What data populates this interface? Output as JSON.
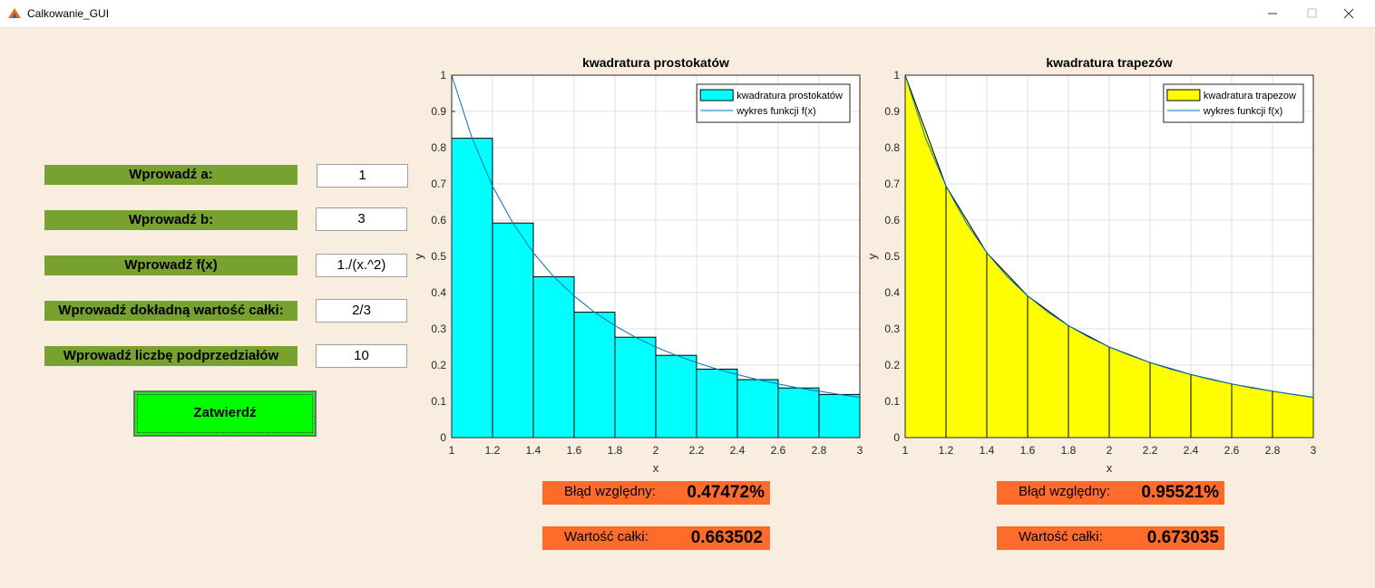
{
  "window": {
    "title": "Calkowanie_GUI"
  },
  "form": {
    "fields": [
      {
        "label": "Wprowadź a:",
        "value": "1"
      },
      {
        "label": "Wprowadź b:",
        "value": "3"
      },
      {
        "label": "Wprowadź f(x)",
        "value": "1./(x.^2)"
      },
      {
        "label": "Wprowadź dokładną wartość całki:",
        "value": "2/3"
      },
      {
        "label": "Wprowadź liczbę podprzedziałów",
        "value": "10"
      }
    ],
    "button": "Zatwierdź"
  },
  "results": [
    {
      "error_label": "Błąd względny:",
      "error_value": "0.47472%",
      "integral_label": "Wartość całki:",
      "integral_value": "0.663502"
    },
    {
      "error_label": "Błąd względny:",
      "error_value": "0.95521%",
      "integral_label": "Wartość całki:",
      "integral_value": "0.673035"
    }
  ],
  "chart_data": [
    {
      "type": "histogram",
      "title": "kwadratura prostokatów",
      "xlabel": "x",
      "ylabel": "y",
      "xlim": [
        1,
        3
      ],
      "ylim": [
        0,
        1
      ],
      "xticks": [
        1,
        1.2,
        1.4,
        1.6,
        1.8,
        2,
        2.2,
        2.4,
        2.6,
        2.8,
        3
      ],
      "yticks": [
        0,
        0.1,
        0.2,
        0.3,
        0.4,
        0.5,
        0.6,
        0.7,
        0.8,
        0.9,
        1
      ],
      "grid": true,
      "legend": "upper right",
      "series": [
        {
          "name": "kwadratura prostokatów",
          "color": "#00ffff",
          "type": "histogram",
          "bins": [
            1,
            1.2,
            1.4,
            1.6,
            1.8,
            2,
            2.2,
            2.4,
            2.6,
            2.8,
            3
          ],
          "values": [
            0.826,
            0.592,
            0.444,
            0.346,
            0.277,
            0.227,
            0.189,
            0.16,
            0.137,
            0.119
          ]
        },
        {
          "name": "wykres funkcji f(x)",
          "color": "#0072bd",
          "type": "line",
          "x": [
            1,
            1.1,
            1.2,
            1.3,
            1.4,
            1.5,
            1.6,
            1.7,
            1.8,
            1.9,
            2,
            2.1,
            2.2,
            2.3,
            2.4,
            2.5,
            2.6,
            2.7,
            2.8,
            2.9,
            3
          ],
          "values": [
            1,
            0.826,
            0.694,
            0.592,
            0.51,
            0.444,
            0.391,
            0.346,
            0.309,
            0.277,
            0.25,
            0.227,
            0.207,
            0.189,
            0.174,
            0.16,
            0.148,
            0.137,
            0.128,
            0.119,
            0.111
          ]
        }
      ]
    },
    {
      "type": "area",
      "title": "kwadratura trapezów",
      "xlabel": "x",
      "ylabel": "y",
      "xlim": [
        1,
        3
      ],
      "ylim": [
        0,
        1
      ],
      "xticks": [
        1,
        1.2,
        1.4,
        1.6,
        1.8,
        2,
        2.2,
        2.4,
        2.6,
        2.8,
        3
      ],
      "yticks": [
        0,
        0.1,
        0.2,
        0.3,
        0.4,
        0.5,
        0.6,
        0.7,
        0.8,
        0.9,
        1
      ],
      "grid": true,
      "legend": "upper right",
      "series": [
        {
          "name": "kwadratura trapezow",
          "color": "#ffff00",
          "type": "area",
          "x": [
            1,
            1.2,
            1.4,
            1.6,
            1.8,
            2,
            2.2,
            2.4,
            2.6,
            2.8,
            3
          ],
          "values": [
            1,
            0.694,
            0.51,
            0.391,
            0.309,
            0.25,
            0.207,
            0.174,
            0.148,
            0.128,
            0.111
          ]
        },
        {
          "name": "wykres funkcji f(x)",
          "color": "#0072bd",
          "type": "line",
          "x": [
            1,
            1.1,
            1.2,
            1.3,
            1.4,
            1.5,
            1.6,
            1.7,
            1.8,
            1.9,
            2,
            2.1,
            2.2,
            2.3,
            2.4,
            2.5,
            2.6,
            2.7,
            2.8,
            2.9,
            3
          ],
          "values": [
            1,
            0.826,
            0.694,
            0.592,
            0.51,
            0.444,
            0.391,
            0.346,
            0.309,
            0.277,
            0.25,
            0.227,
            0.207,
            0.189,
            0.174,
            0.16,
            0.148,
            0.137,
            0.128,
            0.119,
            0.111
          ]
        }
      ]
    }
  ]
}
